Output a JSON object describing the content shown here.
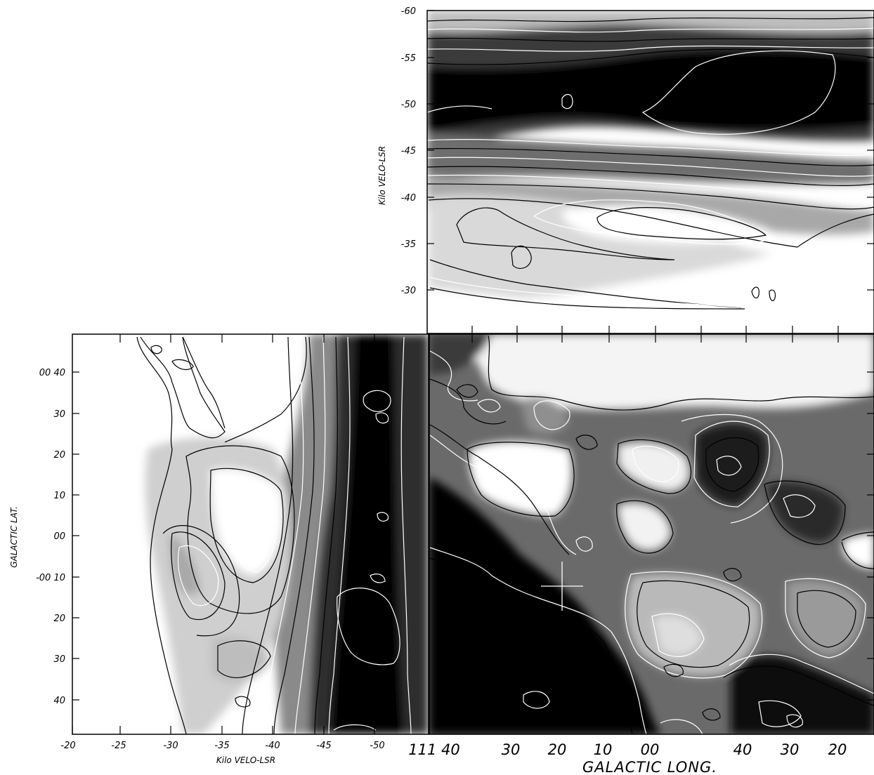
{
  "chart_data": [
    {
      "type": "heatmap",
      "panel": "longitude-velocity",
      "title": "",
      "ylabel": "Kilo VELO-LSR",
      "ylim": [
        -28,
        -60
      ],
      "yticks": [
        "-60",
        "-55",
        "-50",
        "-45",
        "-40",
        "-35",
        "-30"
      ],
      "x_axis": "GALACTIC LONG.",
      "colormap": "grayscale (black = high intensity)",
      "contours": true,
      "features": [
        {
          "label": "dark emission band",
          "velocity_range": [
            -47,
            -53
          ]
        },
        {
          "label": "faint emission lane",
          "velocity_range": [
            -31,
            -40
          ]
        }
      ]
    },
    {
      "type": "heatmap",
      "panel": "velocity-latitude",
      "title": "",
      "xlabel": "Kilo VELO-LSR",
      "xlim": [
        -20,
        -53
      ],
      "xticks": [
        "-20",
        "-25",
        "-30",
        "-35",
        "-40",
        "-45",
        "-50"
      ],
      "ylabel": "GALACTIC LAT.",
      "yticks": [
        "00 40",
        "30",
        "20",
        "10",
        "00",
        "-00 10",
        "20",
        "30",
        "40"
      ],
      "colormap": "grayscale (black = high intensity)",
      "contours": true,
      "features": [
        {
          "label": "dark emission band",
          "velocity_range": [
            -47,
            -53
          ]
        }
      ]
    },
    {
      "type": "heatmap",
      "panel": "longitude-latitude",
      "title": "",
      "xlabel": "GALACTIC LONG.",
      "xticks": [
        "111 40",
        "30",
        "20",
        "10",
        "00",
        "40",
        "30",
        "20"
      ],
      "colormap": "grayscale (black = high intensity)",
      "contours": true,
      "marker": "cross"
    }
  ]
}
